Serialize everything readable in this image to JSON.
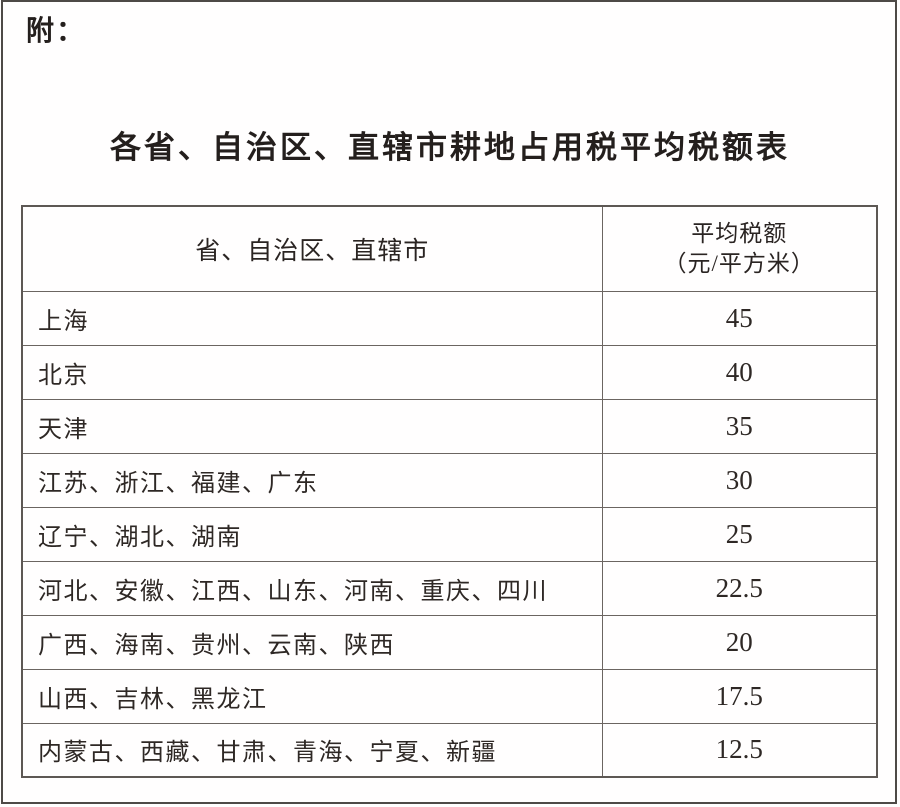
{
  "page": {
    "attachment_label": "附：",
    "title": "各省、自治区、直辖市耕地占用税平均税额表"
  },
  "table": {
    "header": {
      "regions": "省、自治区、直辖市",
      "rate_line1": "平均税额",
      "rate_line2": "（元/平方米）"
    },
    "rows": [
      {
        "regions": "上海",
        "rate": "45"
      },
      {
        "regions": "北京",
        "rate": "40"
      },
      {
        "regions": "天津",
        "rate": "35"
      },
      {
        "regions": "江苏、浙江、福建、广东",
        "rate": "30"
      },
      {
        "regions": "辽宁、湖北、湖南",
        "rate": "25"
      },
      {
        "regions": "河北、安徽、江西、山东、河南、重庆、四川",
        "rate": "22.5"
      },
      {
        "regions": "广西、海南、贵州、云南、陕西",
        "rate": "20"
      },
      {
        "regions": "山西、吉林、黑龙江",
        "rate": "17.5"
      },
      {
        "regions": "内蒙古、西藏、甘肃、青海、宁夏、新疆",
        "rate": "12.5"
      }
    ]
  },
  "colors": {
    "text": "#2a2422",
    "table_border": "#6b6561",
    "frame_border": "#4e4a47",
    "background": "#fffefe"
  }
}
